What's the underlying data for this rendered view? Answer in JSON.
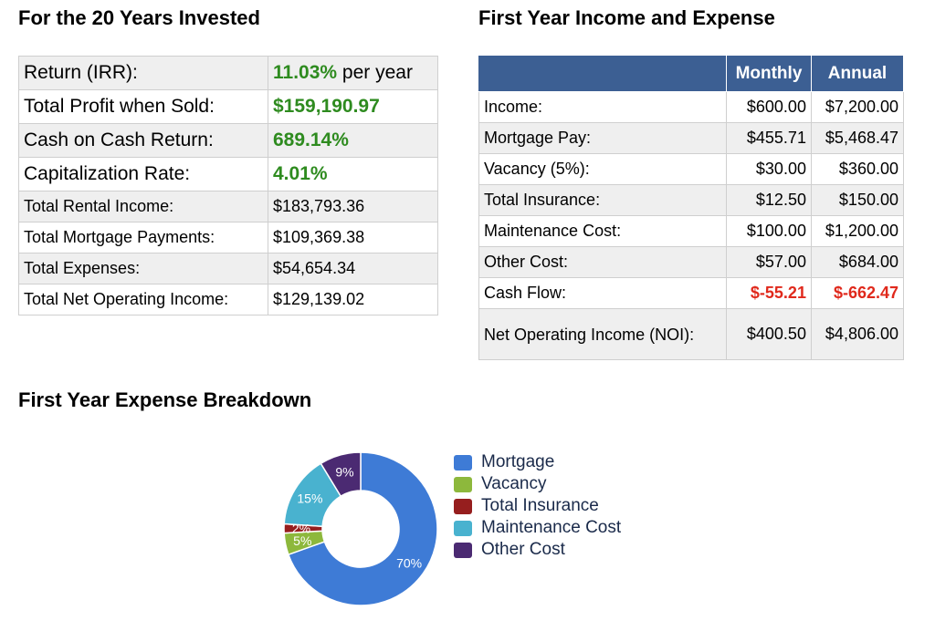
{
  "summary": {
    "heading": "For the 20 Years Invested",
    "rows": [
      {
        "label": "Return (IRR):",
        "value": "11.03%",
        "suffix": " per year"
      },
      {
        "label": "Total Profit when Sold:",
        "value": "$159,190.97"
      },
      {
        "label": "Cash on Cash Return:",
        "value": "689.14%"
      },
      {
        "label": "Capitalization Rate:",
        "value": "4.01%"
      },
      {
        "label": "Total Rental Income:",
        "value": "$183,793.36"
      },
      {
        "label": "Total Mortgage Payments:",
        "value": "$109,369.38"
      },
      {
        "label": "Total Expenses:",
        "value": "$54,654.34"
      },
      {
        "label": "Total Net Operating Income:",
        "value": "$129,139.02"
      }
    ]
  },
  "income": {
    "heading": "First Year Income and Expense",
    "col_monthly": "Monthly",
    "col_annual": "Annual",
    "rows": [
      {
        "label": "Income:",
        "monthly": "$600.00",
        "annual": "$7,200.00"
      },
      {
        "label": "Mortgage Pay:",
        "monthly": "$455.71",
        "annual": "$5,468.47"
      },
      {
        "label": "Vacancy (5%):",
        "monthly": "$30.00",
        "annual": "$360.00"
      },
      {
        "label": "Total Insurance:",
        "monthly": "$12.50",
        "annual": "$150.00"
      },
      {
        "label": "Maintenance Cost:",
        "monthly": "$100.00",
        "annual": "$1,200.00"
      },
      {
        "label": "Other Cost:",
        "monthly": "$57.00",
        "annual": "$684.00"
      },
      {
        "label": "Cash Flow:",
        "monthly": "$-55.21",
        "annual": "$-662.47"
      },
      {
        "label": "Net Operating Income (NOI):",
        "monthly": "$400.50",
        "annual": "$4,806.00"
      }
    ]
  },
  "expense": {
    "heading": "First Year Expense Breakdown"
  },
  "chart_data": {
    "type": "pie",
    "donut": true,
    "title": "",
    "categories": [
      "Mortgage",
      "Vacancy",
      "Total Insurance",
      "Maintenance Cost",
      "Other Cost"
    ],
    "values": [
      455.71,
      30.0,
      12.5,
      100.0,
      57.0
    ],
    "labels": [
      "70%",
      "5%",
      "2%",
      "15%",
      "9%"
    ],
    "colors": [
      "#3e7bd6",
      "#8db83c",
      "#961e1e",
      "#49b2cf",
      "#4b2a72"
    ],
    "legend_position": "right"
  },
  "colors": {
    "header_bg": "#3c5f93",
    "positive_green": "#2e8b1f",
    "negative_red": "#e0291c"
  }
}
